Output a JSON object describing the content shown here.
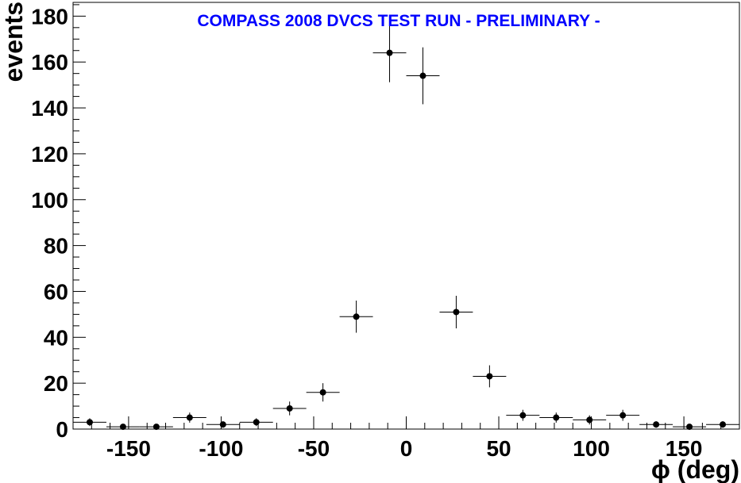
{
  "chart_data": {
    "type": "scatter",
    "title": "COMPASS 2008 DVCS TEST RUN  - PRELIMINARY -",
    "title_color": "#0000ff",
    "xlabel": "ϕ (deg)",
    "ylabel": "events",
    "xlim": [
      -180,
      180
    ],
    "ylim": [
      0,
      186
    ],
    "x_ticks": [
      -150,
      -100,
      -50,
      0,
      50,
      100,
      150
    ],
    "y_ticks": [
      0,
      20,
      40,
      60,
      80,
      100,
      120,
      140,
      160,
      180
    ],
    "grid": false,
    "bin_width": 18,
    "series": [
      {
        "x": [
          -171,
          -153,
          -135,
          -117,
          -99,
          -81,
          -63,
          -45,
          -27,
          -9,
          9,
          27,
          45,
          63,
          81,
          99,
          117,
          135,
          153,
          171
        ],
        "y": [
          3,
          1,
          1,
          5,
          2,
          3,
          9,
          16,
          49,
          164,
          154,
          51,
          23,
          6,
          5,
          4,
          6,
          2,
          1,
          2
        ],
        "yerr": [
          1.7,
          1,
          1,
          2.2,
          1.4,
          1.7,
          3,
          4,
          7,
          12.8,
          12.4,
          7.1,
          4.8,
          2.4,
          2.2,
          2,
          2.4,
          1.4,
          1,
          1.4
        ]
      }
    ]
  }
}
